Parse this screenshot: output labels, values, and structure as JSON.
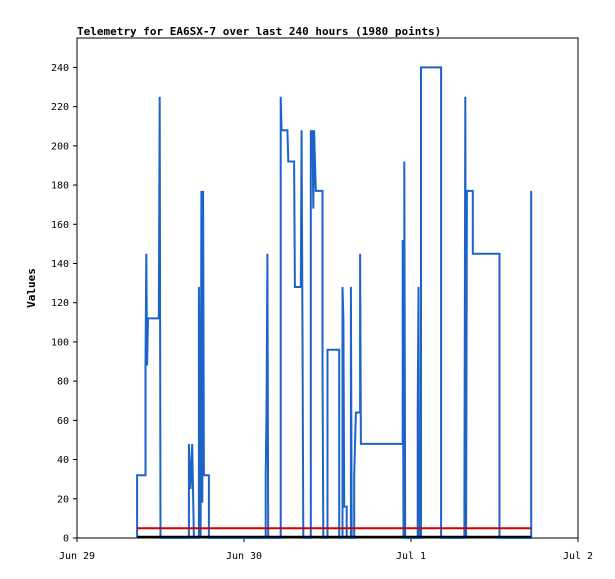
{
  "chart_data": {
    "type": "line",
    "title": "Telemetry for EA6SX-7 over last 240 hours (1980 points)",
    "xlabel": "",
    "ylabel": "Values",
    "xlim": [
      0,
      3
    ],
    "ylim": [
      0,
      255
    ],
    "x_ticks": [
      {
        "value": 0,
        "label": "Jun 29"
      },
      {
        "value": 1,
        "label": "Jun 30"
      },
      {
        "value": 2,
        "label": "Jul 1"
      },
      {
        "value": 3,
        "label": "Jul 2"
      }
    ],
    "y_ticks": [
      0,
      20,
      40,
      60,
      80,
      100,
      120,
      140,
      160,
      180,
      200,
      220,
      240
    ],
    "grid": false,
    "x_units": "days since Jun 29",
    "series": [
      {
        "color": "#1e64c8",
        "style": "step",
        "points": [
          [
            0.36,
            0
          ],
          [
            0.36,
            32
          ],
          [
            0.41,
            32
          ],
          [
            0.41,
            88
          ],
          [
            0.415,
            145
          ],
          [
            0.42,
            88
          ],
          [
            0.425,
            112
          ],
          [
            0.49,
            112
          ],
          [
            0.495,
            225
          ],
          [
            0.5,
            0
          ],
          [
            0.67,
            0
          ],
          [
            0.67,
            48
          ],
          [
            0.68,
            25
          ],
          [
            0.69,
            48
          ],
          [
            0.7,
            0
          ],
          [
            0.73,
            0
          ],
          [
            0.73,
            128
          ],
          [
            0.74,
            0
          ],
          [
            0.745,
            177
          ],
          [
            0.75,
            18
          ],
          [
            0.755,
            177
          ],
          [
            0.76,
            32
          ],
          [
            0.79,
            32
          ],
          [
            0.79,
            0
          ],
          [
            1.13,
            0
          ],
          [
            1.13,
            32
          ],
          [
            1.135,
            64
          ],
          [
            1.14,
            145
          ],
          [
            1.145,
            0
          ],
          [
            1.22,
            0
          ],
          [
            1.22,
            225
          ],
          [
            1.225,
            208
          ],
          [
            1.26,
            208
          ],
          [
            1.265,
            192
          ],
          [
            1.3,
            192
          ],
          [
            1.305,
            128
          ],
          [
            1.34,
            128
          ],
          [
            1.345,
            208
          ],
          [
            1.35,
            104
          ],
          [
            1.355,
            0
          ],
          [
            1.4,
            0
          ],
          [
            1.4,
            208
          ],
          [
            1.405,
            192
          ],
          [
            1.41,
            208
          ],
          [
            1.415,
            168
          ],
          [
            1.42,
            208
          ],
          [
            1.43,
            177
          ],
          [
            1.47,
            177
          ],
          [
            1.47,
            88
          ],
          [
            1.475,
            0
          ],
          [
            1.5,
            0
          ],
          [
            1.5,
            96
          ],
          [
            1.57,
            96
          ],
          [
            1.57,
            0
          ],
          [
            1.59,
            0
          ],
          [
            1.59,
            128
          ],
          [
            1.595,
            112
          ],
          [
            1.6,
            16
          ],
          [
            1.615,
            16
          ],
          [
            1.615,
            0
          ],
          [
            1.64,
            0
          ],
          [
            1.64,
            128
          ],
          [
            1.645,
            0
          ],
          [
            1.66,
            0
          ],
          [
            1.66,
            32
          ],
          [
            1.67,
            64
          ],
          [
            1.695,
            64
          ],
          [
            1.695,
            145
          ],
          [
            1.7,
            48
          ],
          [
            1.95,
            48
          ],
          [
            1.95,
            152
          ],
          [
            1.955,
            0
          ],
          [
            1.96,
            0
          ],
          [
            1.96,
            192
          ],
          [
            1.965,
            0
          ],
          [
            2.04,
            0
          ],
          [
            2.04,
            64
          ],
          [
            2.045,
            128
          ],
          [
            2.05,
            0
          ],
          [
            2.06,
            0
          ],
          [
            2.06,
            240
          ],
          [
            2.18,
            240
          ],
          [
            2.18,
            0
          ],
          [
            2.32,
            0
          ],
          [
            2.32,
            16
          ],
          [
            2.325,
            225
          ],
          [
            2.33,
            0
          ],
          [
            2.335,
            177
          ],
          [
            2.37,
            177
          ],
          [
            2.37,
            145
          ],
          [
            2.53,
            145
          ],
          [
            2.53,
            0
          ],
          [
            2.72,
            0
          ],
          [
            2.72,
            177
          ]
        ]
      },
      {
        "color": "#cc0000",
        "style": "line",
        "points": [
          [
            0.36,
            5
          ],
          [
            2.72,
            5
          ]
        ]
      },
      {
        "color": "#000000",
        "style": "line",
        "points": [
          [
            0.36,
            0.6
          ],
          [
            2.72,
            0.6
          ]
        ]
      }
    ]
  }
}
